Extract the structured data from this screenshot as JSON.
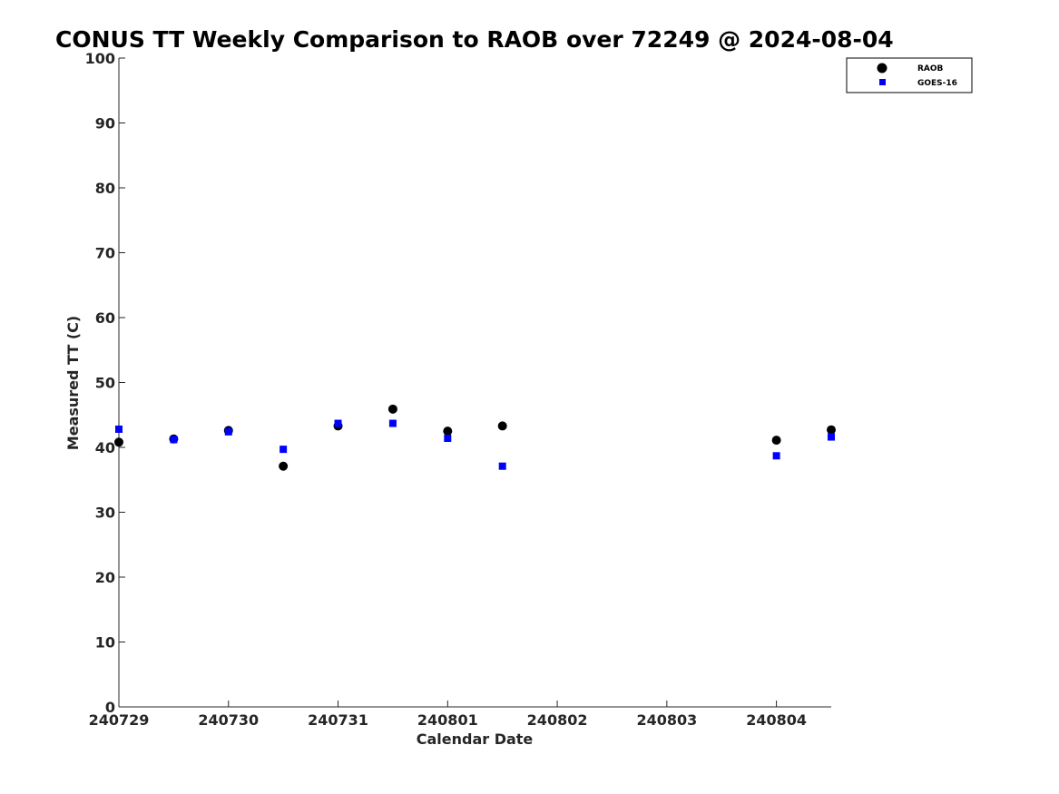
{
  "chart_data": {
    "type": "scatter",
    "title": "CONUS TT Weekly Comparison to RAOB over 72249 @ 2024-08-04",
    "xlabel": "Calendar Date",
    "ylabel": "Measured TT (C)",
    "x_ticks": [
      "240729",
      "240730",
      "240731",
      "240801",
      "240802",
      "240803",
      "240804"
    ],
    "xlim": [
      0,
      6.5
    ],
    "ylim": [
      0,
      100
    ],
    "y_ticks": [
      0,
      10,
      20,
      30,
      40,
      50,
      60,
      70,
      80,
      90,
      100
    ],
    "grid": false,
    "legend_position": "top-right",
    "series": [
      {
        "name": "RAOB",
        "marker": "circle",
        "color": "#000000",
        "x": [
          0,
          0.5,
          1,
          1.5,
          2,
          2.5,
          3,
          3.5,
          6,
          6.5
        ],
        "y": [
          40.8,
          41.3,
          42.6,
          37.1,
          43.3,
          45.9,
          42.5,
          43.3,
          41.1,
          42.7
        ]
      },
      {
        "name": "GOES-16",
        "marker": "square",
        "color": "#0000ff",
        "x": [
          0,
          0.5,
          1,
          1.5,
          2,
          2.5,
          3,
          3.5,
          6,
          6.5
        ],
        "y": [
          42.8,
          41.2,
          42.4,
          39.7,
          43.7,
          43.7,
          41.4,
          37.1,
          38.7,
          41.6
        ]
      }
    ]
  }
}
